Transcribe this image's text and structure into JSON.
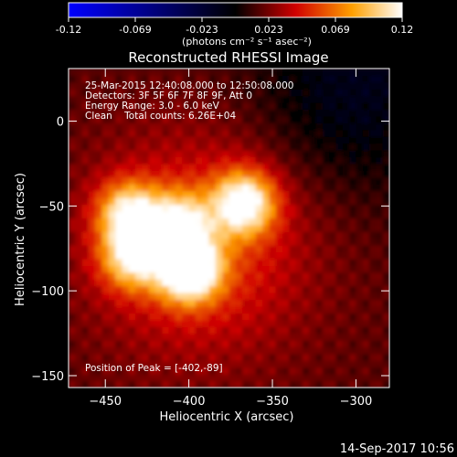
{
  "colorbar": {
    "tick_labels": [
      "-0.12",
      "-0.069",
      "-0.023",
      "0.023",
      "0.069",
      "0.12"
    ],
    "unit_label": "(photons cm⁻² s⁻¹ asec⁻²)"
  },
  "plot": {
    "title": "Reconstructed RHESSI Image",
    "info_lines": [
      "25-Mar-2015 12:40:08.000 to 12:50:08.000",
      "Detectors: 3F 5F 6F 7F 8F 9F, Att 0",
      "Energy Range: 3.0 - 6.0 keV",
      "Clean    Total counts: 6.26E+04"
    ],
    "peak_label": "Position of Peak = [-402,-89]"
  },
  "footer": {
    "timestamp": "14-Sep-2017 10:56"
  },
  "chart_data": {
    "type": "heatmap",
    "title": "Reconstructed RHESSI Image",
    "xlabel": "Heliocentric X (arcsec)",
    "ylabel": "Heliocentric Y (arcsec)",
    "xlim": [
      -472,
      -280
    ],
    "ylim": [
      -157,
      31
    ],
    "x_ticks": [
      -450,
      -400,
      -350,
      -300
    ],
    "y_ticks": [
      0,
      -50,
      -100,
      -150
    ],
    "color_range": [
      -0.12,
      0.12
    ],
    "color_scale": [
      "#0000ff",
      "#000000",
      "#ff0000",
      "#ffff00",
      "#ffffff"
    ],
    "sources": [
      {
        "x": -402,
        "y": -89,
        "peak": 0.12
      },
      {
        "x": -369,
        "y": -50,
        "peak": 0.1
      },
      {
        "x": -438,
        "y": -56,
        "peak": 0.085
      },
      {
        "x": -436,
        "y": -82,
        "peak": 0.08
      },
      {
        "x": -408,
        "y": -62,
        "peak": 0.075
      }
    ],
    "peak_position": [
      -402,
      -89
    ]
  }
}
